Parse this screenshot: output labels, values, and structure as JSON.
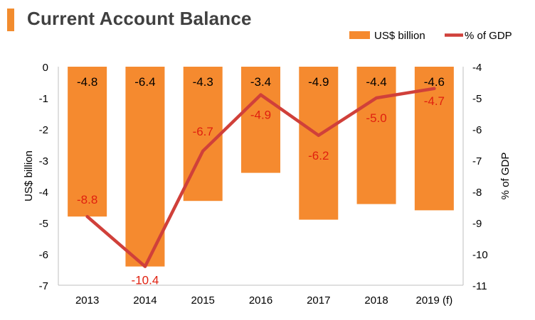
{
  "title": "Current Account Balance",
  "colors": {
    "bar": "#f58a2f",
    "line": "#d0403a",
    "line_label": "#e0200f",
    "accent": "#f28c2e"
  },
  "chart_data": {
    "type": "bar",
    "categories": [
      "2013",
      "2014",
      "2015",
      "2016",
      "2017",
      "2018",
      "2019 (f)"
    ],
    "series": [
      {
        "name": "US$ billion",
        "type": "bar",
        "axis": "left",
        "values": [
          -4.8,
          -6.4,
          -4.3,
          -3.4,
          -4.9,
          -4.4,
          -4.6
        ],
        "labels": [
          "-4.8",
          "-6.4",
          "-4.3",
          "-3.4",
          "-4.9",
          "-4.4",
          "-4.6"
        ]
      },
      {
        "name": "% of GDP",
        "type": "line",
        "axis": "right",
        "values": [
          -8.8,
          -10.4,
          -6.7,
          -4.9,
          -6.2,
          -5.0,
          -4.7
        ],
        "labels": [
          "-8.8",
          "-10.4",
          "-6.7",
          "-4.9",
          "-6.2",
          "-5.0",
          "-4.7"
        ]
      }
    ],
    "ylabel_left": "US$ billion",
    "ylabel_right": "% of GDP",
    "ylim_left": [
      -7,
      0
    ],
    "ylim_right": [
      -11,
      -4
    ],
    "yticks_left": [
      "0",
      "-1",
      "-2",
      "-3",
      "-4",
      "-5",
      "-6",
      "-7"
    ],
    "yticks_right": [
      "-4",
      "-5",
      "-6",
      "-7",
      "-8",
      "-9",
      "-10",
      "-11"
    ],
    "legend_position": "top-right",
    "grid": false
  }
}
